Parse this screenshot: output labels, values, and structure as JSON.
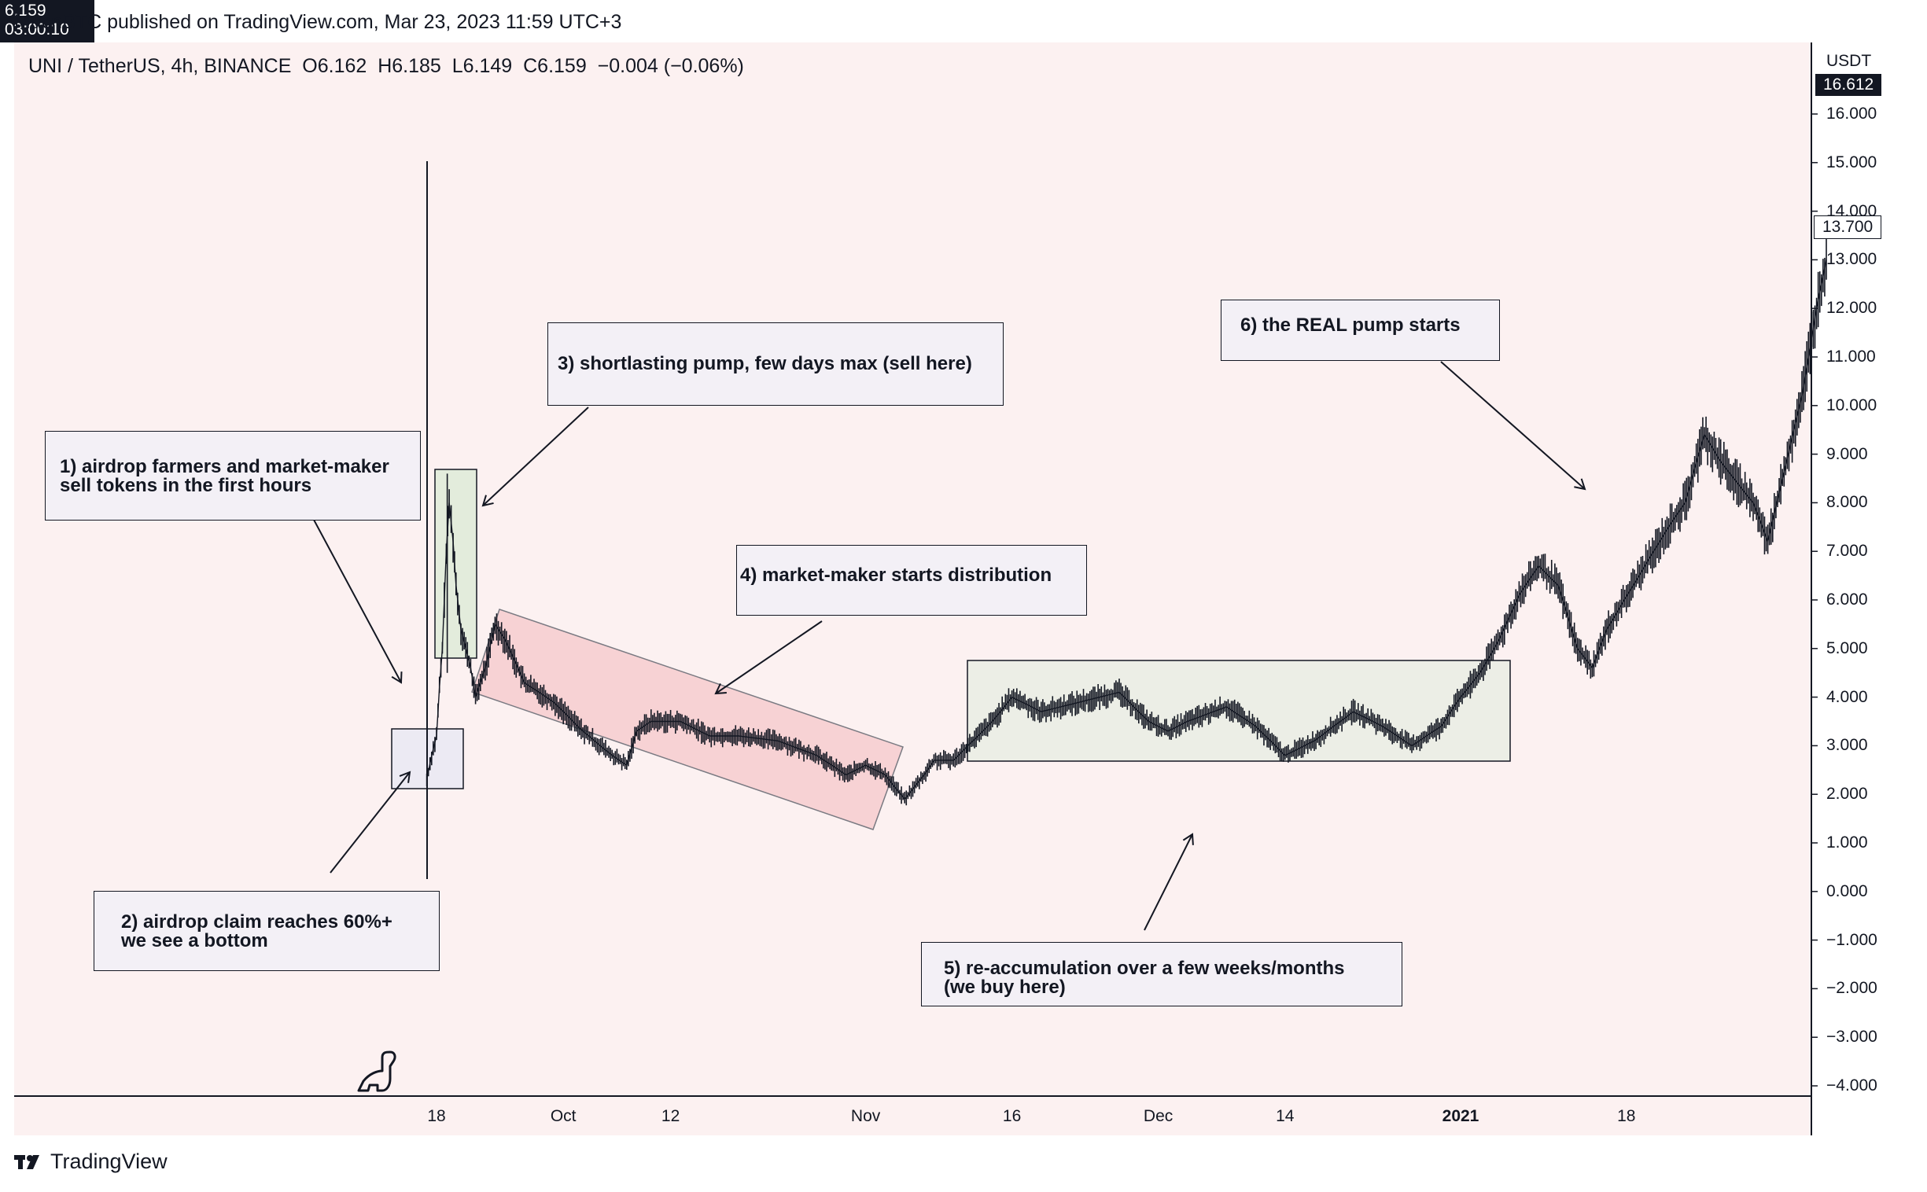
{
  "header": {
    "published_text": "MacnBTC published on TradingView.com, Mar 23, 2023 11:59 UTC+3"
  },
  "symbol": {
    "pair": "UNI / TetherUS, 4h, BINANCE",
    "open": "O6.162",
    "high": "H6.185",
    "low": "L6.149",
    "close": "C6.159",
    "change": "−0.004 (−0.06%)"
  },
  "price_axis": {
    "unit": "USDT",
    "top_tag": "16.612",
    "high_tag": "13.700",
    "last_price": "6.159",
    "countdown": "03:00:10"
  },
  "annotations": {
    "a1_line1": "1) airdrop farmers and market-maker",
    "a1_line2": "sell tokens in the first hours",
    "a2_line1": "2) airdrop claim reaches 60%+",
    "a2_line2": "we see a bottom",
    "a3": "3) shortlasting pump, few days max (sell here)",
    "a4": "4) market-maker starts distribution",
    "a5_line1": "5) re-accumulation over a few weeks/months",
    "a5_line2": "(we buy here)",
    "a6": "6) the REAL pump starts"
  },
  "footer": {
    "brand": "TradingView"
  },
  "colors": {
    "background": "#fcf1f1",
    "ink": "#131722",
    "distribution_fill": "#f7d2d4",
    "accumulation_fill": "#eceee6",
    "note_fill": "#f3f0f6"
  },
  "chart_data": {
    "type": "line",
    "title": "UNI / TetherUS, 4h, BINANCE",
    "ylabel": "USDT",
    "ylim": [
      -4.3,
      17.6
    ],
    "y_ticks": [
      "16.000",
      "15.000",
      "14.000",
      "13.000",
      "12.000",
      "11.000",
      "10.000",
      "9.000",
      "8.000",
      "7.000",
      "6.000",
      "5.000",
      "4.000",
      "3.000",
      "2.000",
      "1.000",
      "0.000",
      "−1.000",
      "−2.000",
      "−3.000",
      "−4.000"
    ],
    "x_ticks": [
      {
        "label": "18",
        "t": 0.0,
        "bold": false
      },
      {
        "label": "Oct",
        "t": 13.0,
        "bold": false
      },
      {
        "label": "12",
        "t": 24.0,
        "bold": false
      },
      {
        "label": "Nov",
        "t": 44.0,
        "bold": false
      },
      {
        "label": "16",
        "t": 59.0,
        "bold": false
      },
      {
        "label": "Dec",
        "t": 74.0,
        "bold": false
      },
      {
        "label": "14",
        "t": 87.0,
        "bold": false
      },
      {
        "label": "2021",
        "t": 105.0,
        "bold": true
      },
      {
        "label": "18",
        "t": 122.0,
        "bold": false
      }
    ],
    "x_unit": "days since Sep 17, 2020",
    "series": [
      {
        "name": "UNI/USDT close",
        "x": [
          -1.0,
          -0.5,
          0.0,
          0.3,
          0.6,
          1.0,
          1.3,
          1.7,
          2.0,
          2.5,
          3.0,
          3.5,
          4.0,
          5.0,
          6.0,
          7.0,
          9.0,
          12.0,
          15.0,
          18.0,
          19.5,
          20.5,
          22.0,
          25.0,
          28.0,
          31.0,
          35.0,
          39.0,
          42.0,
          44.0,
          46.0,
          48.0,
          50.0,
          51.0,
          53.0,
          55.0,
          57.0,
          59.0,
          62.0,
          66.0,
          70.0,
          73.0,
          75.0,
          77.0,
          81.0,
          84.0,
          87.0,
          90.0,
          94.0,
          97.0,
          100.0,
          103.0,
          105.0,
          107.0,
          109.0,
          111.0,
          113.0,
          115.0,
          117.0,
          118.5,
          120.0,
          123.0,
          126.0,
          128.0,
          130.0,
          131.5,
          133.0,
          135.0,
          136.5,
          138.0,
          140.0,
          141.5,
          142.5
        ],
        "y": [
          2.3,
          2.8,
          3.2,
          4.2,
          5.0,
          7.0,
          8.0,
          7.2,
          6.3,
          5.4,
          5.0,
          4.6,
          4.0,
          4.6,
          5.5,
          5.2,
          4.3,
          3.9,
          3.3,
          2.8,
          2.6,
          3.3,
          3.5,
          3.5,
          3.2,
          3.2,
          3.1,
          2.8,
          2.4,
          2.6,
          2.4,
          1.9,
          2.4,
          2.7,
          2.7,
          3.1,
          3.5,
          4.0,
          3.7,
          3.9,
          4.1,
          3.5,
          3.3,
          3.5,
          3.8,
          3.4,
          2.8,
          3.1,
          3.7,
          3.4,
          3.0,
          3.4,
          4.0,
          4.5,
          5.2,
          6.1,
          6.7,
          6.3,
          5.0,
          4.6,
          5.4,
          6.4,
          7.4,
          8.0,
          9.4,
          8.9,
          8.5,
          8.0,
          7.2,
          8.5,
          10.2,
          12.0,
          13.0
        ]
      }
    ]
  }
}
